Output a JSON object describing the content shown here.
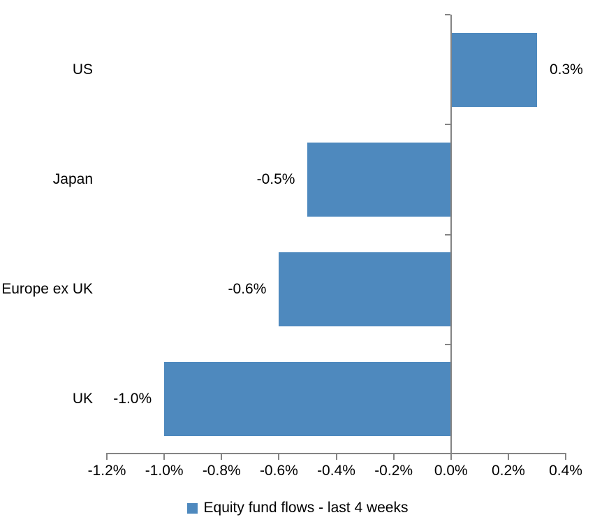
{
  "chart_data": {
    "type": "bar",
    "orientation": "horizontal",
    "title": "",
    "xlabel": "",
    "ylabel": "",
    "categories": [
      "US",
      "Japan",
      "Europe ex UK",
      "UK"
    ],
    "series": [
      {
        "name": "Equity fund flows - last 4 weeks",
        "values": [
          0.3,
          -0.5,
          -0.6,
          -1.0
        ],
        "value_labels": [
          "0.3%",
          "-0.5%",
          "-0.6%",
          "-1.0%"
        ]
      }
    ],
    "series_name": "Equity fund flows - last 4 weeks",
    "xlim": [
      -1.2,
      0.4
    ],
    "x_ticks": [
      -1.2,
      -1.0,
      -0.8,
      -0.6,
      -0.4,
      -0.2,
      0.0,
      0.2,
      0.4
    ],
    "x_tick_labels": [
      "-1.2%",
      "-1.0%",
      "-0.8%",
      "-0.6%",
      "-0.4%",
      "-0.2%",
      "0.0%",
      "0.2%",
      "0.4%"
    ],
    "grid": false,
    "legend_position": "bottom",
    "data_labels": "outside-end",
    "bar_color": "#4E89BE",
    "axis_color": "#848484",
    "text_color": "#000000",
    "background": "#FFFFFF"
  }
}
